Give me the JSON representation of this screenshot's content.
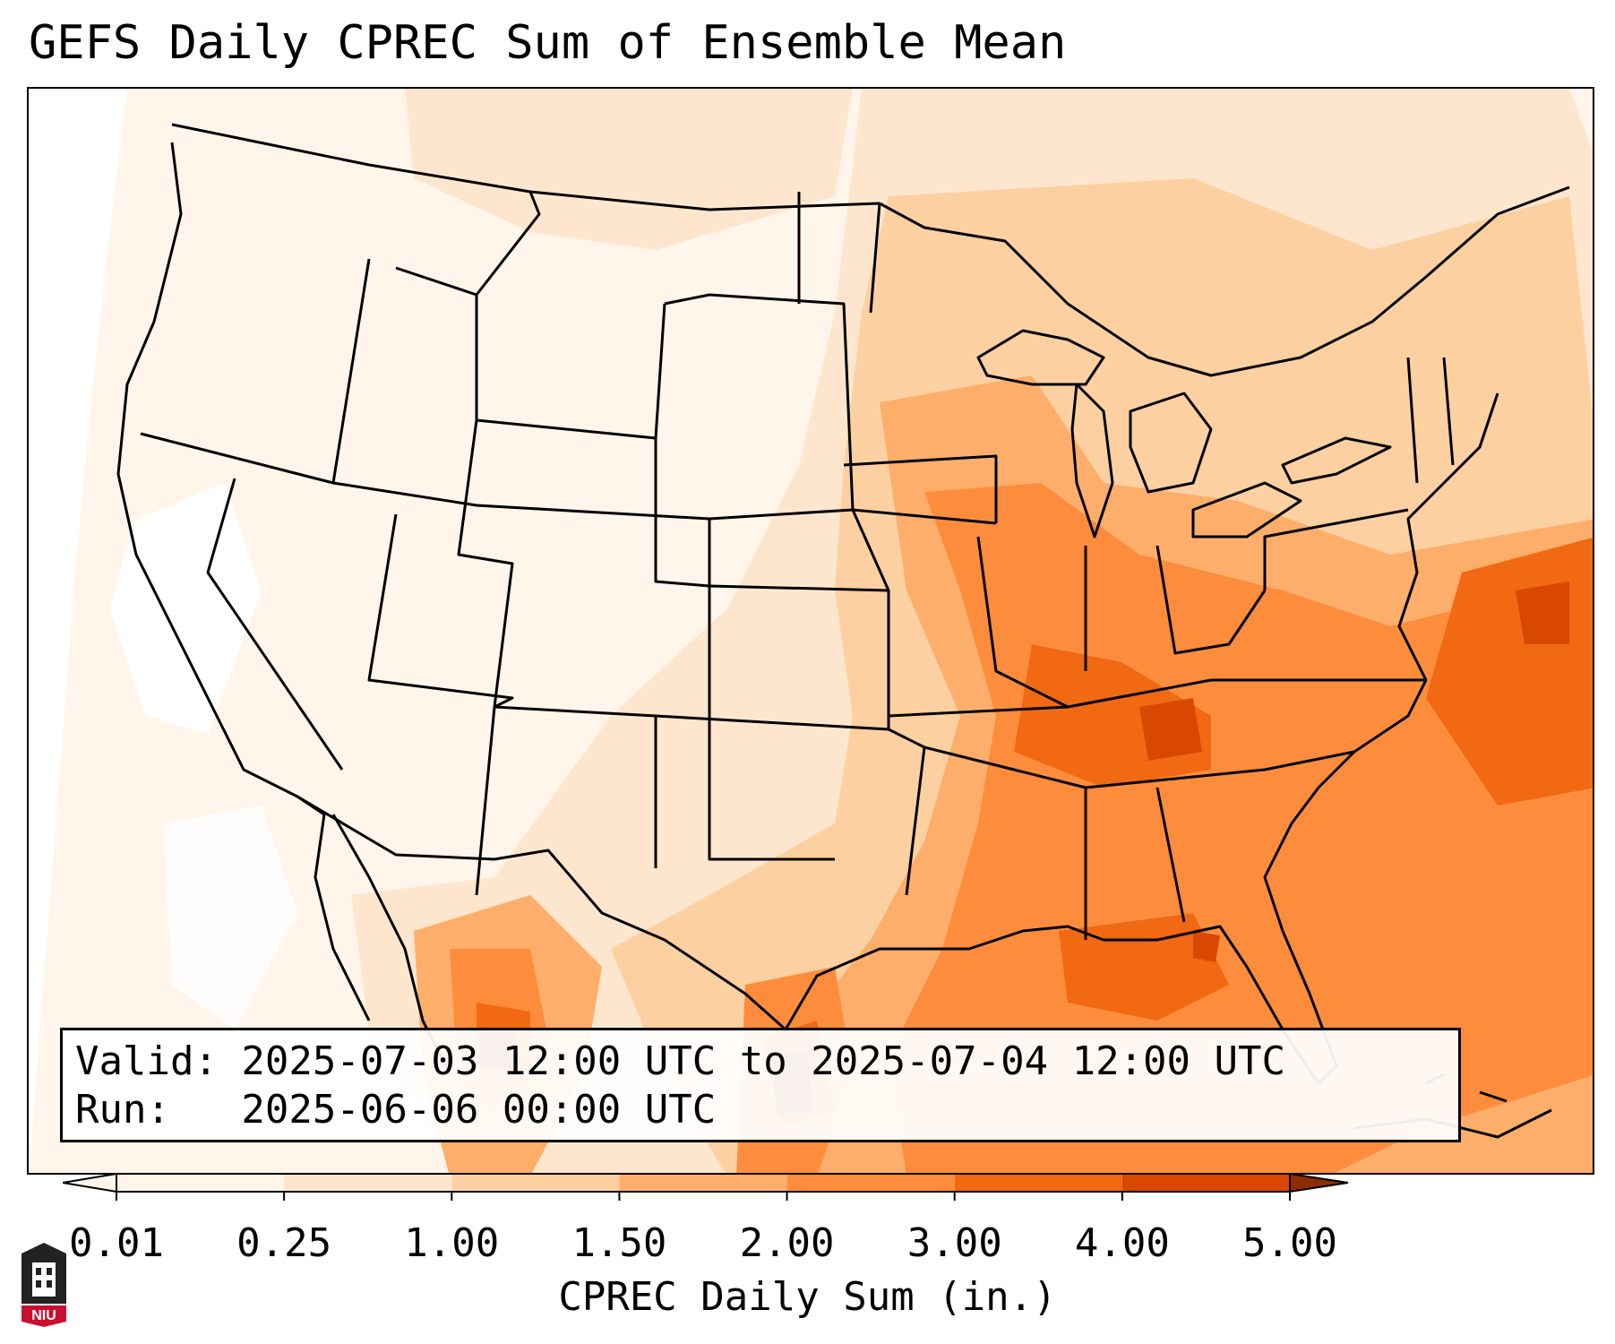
{
  "title": "GEFS Daily CPREC Sum of Ensemble Mean",
  "info": {
    "valid": "Valid: 2025-07-03 12:00 UTC to 2025-07-04 12:00 UTC",
    "run": "Run:   2025-06-06 00:00 UTC"
  },
  "colorbar": {
    "ticks": [
      "0.01",
      "0.25",
      "1.00",
      "1.50",
      "2.00",
      "3.00",
      "4.00",
      "5.00"
    ],
    "tick_values": [
      0.01,
      0.25,
      1.0,
      1.5,
      2.0,
      3.0,
      4.0,
      5.0
    ],
    "colors": [
      "#fff5eb",
      "#fee6ce",
      "#fdd0a2",
      "#fdae6b",
      "#fd8d3c",
      "#f16913",
      "#d94801",
      "#8c2d04"
    ],
    "label": "CPREC Daily Sum (in.)",
    "extend": "both"
  },
  "logo": {
    "text": "NIU",
    "name": "niu-logo"
  },
  "map": {
    "projection": "lambert-conformal",
    "region": "Continental United States",
    "field": "GEFS ensemble mean daily convective precipitation sum",
    "heavy_precip_regions": [
      "Southeast US",
      "Tennessee Valley",
      "Gulf of Mexico",
      "Western Atlantic",
      "Northeast Mexico"
    ]
  }
}
